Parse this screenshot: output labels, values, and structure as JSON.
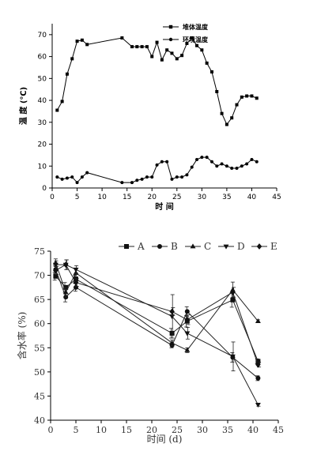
{
  "chart_data": [
    {
      "type": "line",
      "xlabel": "时 间",
      "ylabel": "温 度 (℃)",
      "xlim": [
        0,
        45
      ],
      "ylim": [
        0,
        75
      ],
      "xticks": [
        0,
        5,
        10,
        15,
        20,
        25,
        30,
        35,
        40,
        45
      ],
      "yticks": [
        0,
        10,
        20,
        30,
        40,
        50,
        60,
        70
      ],
      "legend_position": "top-right",
      "series": [
        {
          "name": "堆体温度",
          "marker": "square",
          "x": [
            1,
            2,
            3,
            4,
            5,
            6,
            7,
            14,
            16,
            17,
            18,
            19,
            20,
            21,
            22,
            23,
            24,
            25,
            26,
            27,
            28,
            29,
            30,
            31,
            32,
            33,
            34,
            35,
            36,
            37,
            38,
            39,
            40,
            41
          ],
          "values": [
            35.5,
            39.5,
            52,
            59,
            67,
            67.5,
            65.5,
            68.5,
            64.5,
            64.5,
            64.5,
            64.5,
            60,
            66.5,
            58.5,
            63,
            61.5,
            59,
            60.5,
            66,
            68.5,
            65,
            63,
            57,
            53,
            44,
            34,
            29,
            32,
            38,
            41.5,
            42,
            42,
            41
          ]
        },
        {
          "name": "环境温度",
          "marker": "circle",
          "x": [
            1,
            2,
            3,
            4,
            5,
            6,
            7,
            14,
            16,
            17,
            18,
            19,
            20,
            21,
            22,
            23,
            24,
            25,
            26,
            27,
            28,
            29,
            30,
            31,
            32,
            33,
            34,
            35,
            36,
            37,
            38,
            39,
            40,
            41
          ],
          "values": [
            5,
            4,
            4.5,
            5,
            2.5,
            5,
            7,
            2.5,
            2.5,
            3.5,
            4,
            5,
            5,
            10.5,
            12,
            12,
            4,
            5,
            5,
            6,
            9.5,
            13,
            14,
            14,
            12,
            10,
            11,
            10,
            9,
            9,
            10,
            11,
            13,
            12
          ]
        }
      ]
    },
    {
      "type": "line",
      "xlabel": "时间 (d)",
      "ylabel": "含水率 (%)",
      "xlim": [
        0,
        45
      ],
      "ylim": [
        40,
        75
      ],
      "xticks": [
        0,
        5,
        10,
        15,
        20,
        25,
        30,
        35,
        40,
        45
      ],
      "yticks": [
        40,
        45,
        50,
        55,
        60,
        65,
        70,
        75
      ],
      "legend_position": "top",
      "x": [
        1,
        3,
        5,
        24,
        27,
        36,
        41
      ],
      "series": [
        {
          "name": "A",
          "marker": "square",
          "values": [
            69.8,
            67.5,
            69.2,
            58,
            60.5,
            64.9,
            52.2
          ],
          "errors": [
            0.8,
            1.0,
            0.8,
            1.0,
            1.2,
            1.5,
            0.5
          ]
        },
        {
          "name": "B",
          "marker": "circle",
          "values": [
            71.2,
            65.5,
            67.5,
            55.5,
            62.5,
            53,
            48.7
          ],
          "errors": [
            0.8,
            1.0,
            0.8,
            0.5,
            1.0,
            1.0,
            0.5
          ]
        },
        {
          "name": "C",
          "marker": "triangle-up",
          "values": [
            72.6,
            66.5,
            70.5,
            56,
            54.5,
            67,
            60.5
          ],
          "errors": [
            0.8,
            1.0,
            0.8,
            0.6,
            0.5,
            1.6,
            0.3
          ]
        },
        {
          "name": "D",
          "marker": "triangle-down",
          "values": [
            72.2,
            72.2,
            71.2,
            61.5,
            58,
            53.2,
            43.2
          ],
          "errors": [
            0.8,
            1.0,
            0.8,
            4.5,
            1.2,
            3.0,
            0.3
          ]
        },
        {
          "name": "E",
          "marker": "diamond",
          "values": [
            71,
            72.2,
            68.5,
            62.5,
            60.8,
            66.5,
            51.5
          ],
          "errors": [
            0.8,
            1.0,
            0.8,
            0.8,
            1.0,
            1.0,
            0.5
          ]
        }
      ]
    }
  ]
}
